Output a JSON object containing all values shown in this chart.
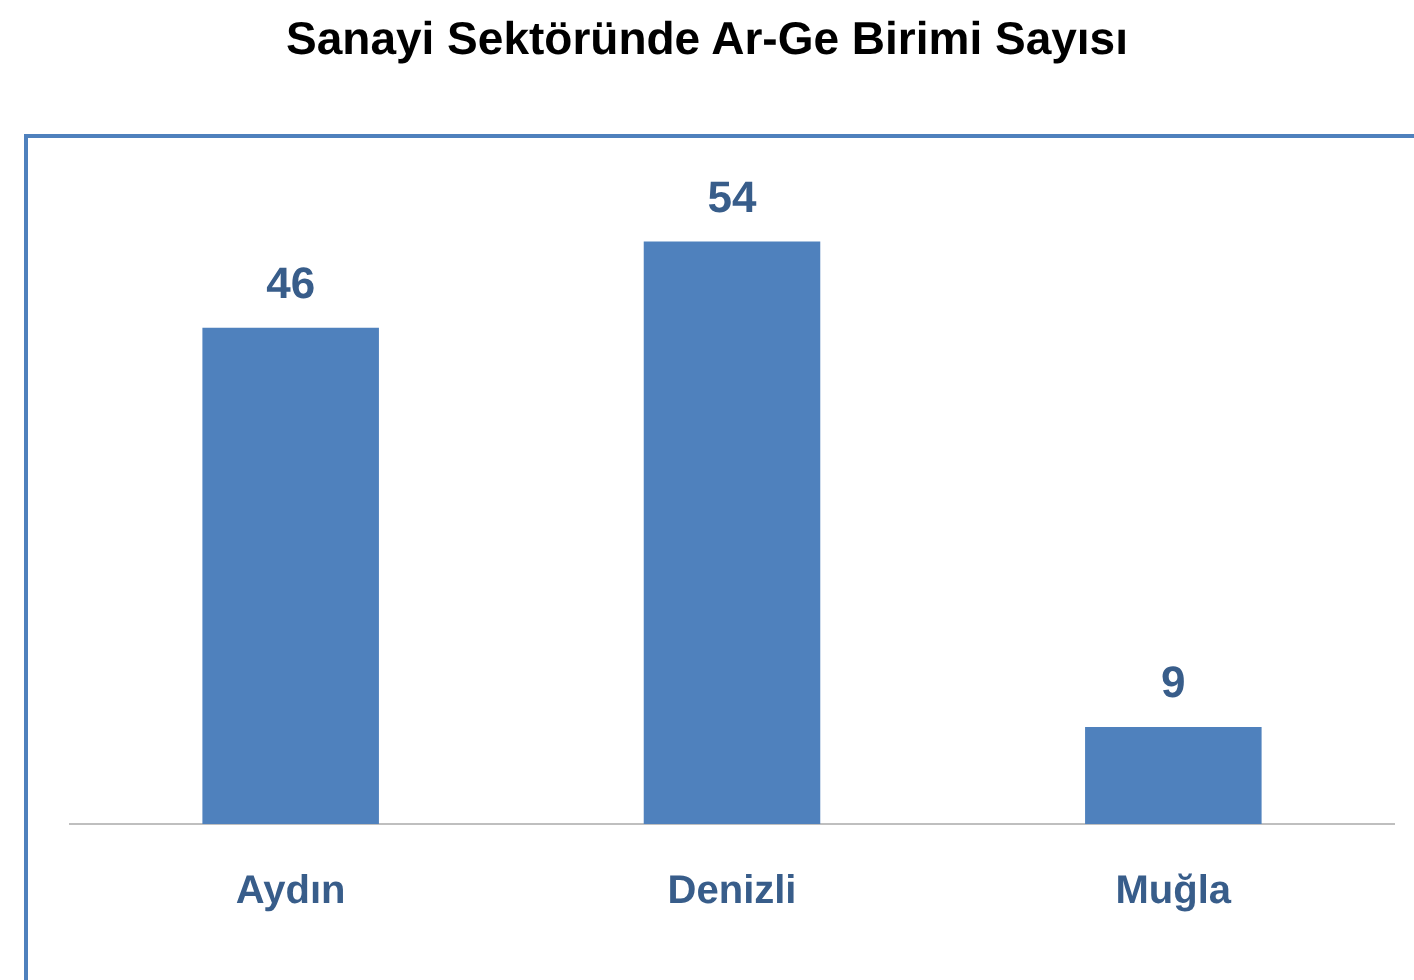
{
  "chart_data": {
    "type": "bar",
    "title": "Sanayi Sektöründe Ar-Ge Birimi Sayısı",
    "categories": [
      "Aydın",
      "Denizli",
      "Muğla"
    ],
    "values": [
      46,
      54,
      9
    ],
    "color": "#4f81bd",
    "data_labels": true,
    "grid": false
  }
}
